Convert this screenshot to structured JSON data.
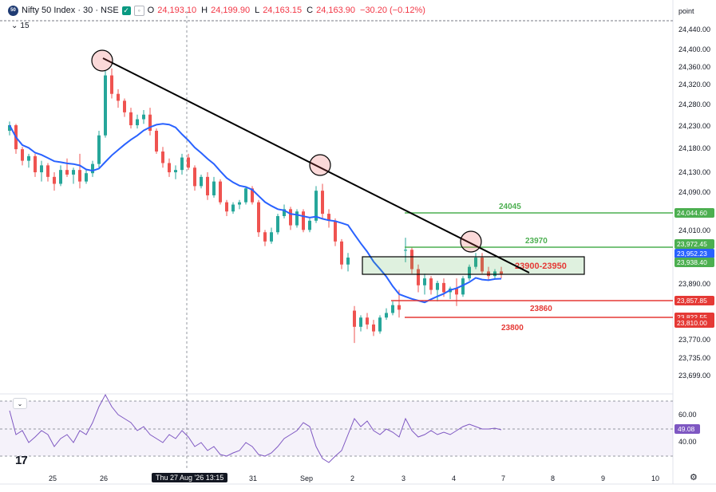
{
  "header": {
    "logo_text": "50",
    "symbol": "Nifty 50 Index · 30 · NSE",
    "o_label": "O",
    "o": "24,193.10",
    "h_label": "H",
    "h": "24,199.90",
    "l_label": "L",
    "l": "24,163.15",
    "c_label": "C",
    "c": "24,163.90",
    "change": "−30.20 (−0.12%)",
    "interval_count": "15"
  },
  "price_scale_label": "point",
  "colors": {
    "up": "#26a69a",
    "down": "#ef5350",
    "ma": "#2962ff",
    "resistance": "#4caf50",
    "support": "#e53935",
    "trend": "#000000",
    "rsi": "#7e57c2"
  },
  "chart_data": {
    "type": "candlestick",
    "y_ticks": [
      "24,440.00",
      "24,400.00",
      "24,360.00",
      "24,320.00",
      "24,280.00",
      "24,230.00",
      "24,180.00",
      "24,130.00",
      "24,090.00",
      "24,010.00",
      "23,890.00",
      "23,770.00",
      "23,735.00",
      "23,699.00"
    ],
    "x_labels": [
      "25",
      "26",
      "31",
      "Sep",
      "2",
      "3",
      "4",
      "7",
      "8",
      "9",
      "10"
    ],
    "cursor_time": "Thu 27 Aug '26  13:15",
    "price_tags": [
      {
        "value": "24,044.60",
        "color": "#4caf50"
      },
      {
        "value": "23,972.45",
        "color": "#4caf50"
      },
      {
        "value": "23,952.23",
        "color": "#2962ff"
      },
      {
        "value": "23,938.40",
        "color": "#4caf50"
      },
      {
        "value": "23,857.85",
        "color": "#e53935"
      },
      {
        "value": "23,822.55",
        "color": "#e53935"
      },
      {
        "value": "23,810.00",
        "color": "#e53935"
      }
    ],
    "levels": [
      {
        "label": "24045",
        "value": 24045,
        "kind": "resistance"
      },
      {
        "label": "23970",
        "value": 23970,
        "kind": "resistance"
      },
      {
        "label": "23860",
        "value": 23860,
        "kind": "support"
      },
      {
        "label": "23800",
        "value": 23800,
        "kind": "support"
      }
    ],
    "zone_label": "23900-23950",
    "candles": [
      [
        24250,
        24270,
        24240,
        24262
      ],
      [
        24262,
        24265,
        24200,
        24210
      ],
      [
        24210,
        24215,
        24175,
        24185
      ],
      [
        24185,
        24200,
        24170,
        24195
      ],
      [
        24195,
        24200,
        24150,
        24160
      ],
      [
        24160,
        24185,
        24140,
        24175
      ],
      [
        24175,
        24180,
        24140,
        24150
      ],
      [
        24150,
        24160,
        24120,
        24135
      ],
      [
        24135,
        24175,
        24130,
        24165
      ],
      [
        24165,
        24190,
        24150,
        24155
      ],
      [
        24155,
        24170,
        24135,
        24165
      ],
      [
        24165,
        24200,
        24125,
        24140
      ],
      [
        24140,
        24165,
        24135,
        24158
      ],
      [
        24158,
        24185,
        24150,
        24178
      ],
      [
        24178,
        24250,
        24170,
        24240
      ],
      [
        24240,
        24380,
        24235,
        24370
      ],
      [
        24370,
        24385,
        24320,
        24330
      ],
      [
        24330,
        24340,
        24300,
        24315
      ],
      [
        24315,
        24320,
        24280,
        24290
      ],
      [
        24290,
        24300,
        24255,
        24262
      ],
      [
        24262,
        24285,
        24255,
        24275
      ],
      [
        24275,
        24295,
        24265,
        24285
      ],
      [
        24285,
        24300,
        24240,
        24250
      ],
      [
        24250,
        24255,
        24200,
        24205
      ],
      [
        24205,
        24215,
        24170,
        24180
      ],
      [
        24180,
        24190,
        24150,
        24160
      ],
      [
        24160,
        24175,
        24145,
        24165
      ],
      [
        24165,
        24200,
        24155,
        24192
      ],
      [
        24192,
        24200,
        24165,
        24170
      ],
      [
        24170,
        24175,
        24120,
        24130
      ],
      [
        24130,
        24155,
        24125,
        24150
      ],
      [
        24150,
        24160,
        24100,
        24110
      ],
      [
        24110,
        24150,
        24105,
        24140
      ],
      [
        24140,
        24145,
        24090,
        24095
      ],
      [
        24095,
        24100,
        24065,
        24075
      ],
      [
        24075,
        24095,
        24070,
        24090
      ],
      [
        24090,
        24100,
        24080,
        24095
      ],
      [
        24095,
        24130,
        24090,
        24125
      ],
      [
        24125,
        24130,
        24090,
        24095
      ],
      [
        24095,
        24100,
        24020,
        24030
      ],
      [
        24030,
        24035,
        24000,
        24010
      ],
      [
        24010,
        24040,
        24005,
        24030
      ],
      [
        24030,
        24070,
        24025,
        24065
      ],
      [
        24065,
        24090,
        24060,
        24080
      ],
      [
        24080,
        24085,
        24035,
        24045
      ],
      [
        24045,
        24080,
        24040,
        24075
      ],
      [
        24075,
        24080,
        24030,
        24035
      ],
      [
        24035,
        24060,
        24030,
        24055
      ],
      [
        24055,
        24130,
        24050,
        24120
      ],
      [
        24120,
        24135,
        24060,
        24070
      ],
      [
        24070,
        24080,
        24040,
        24055
      ],
      [
        24055,
        24060,
        24000,
        24010
      ],
      [
        24010,
        24015,
        23950,
        23960
      ],
      [
        23960,
        23985,
        23945,
        23975
      ],
      [
        23860,
        23870,
        23790,
        23825
      ],
      [
        23825,
        23850,
        23815,
        23845
      ],
      [
        23845,
        23855,
        23820,
        23830
      ],
      [
        23830,
        23840,
        23805,
        23815
      ],
      [
        23815,
        23850,
        23810,
        23845
      ],
      [
        23845,
        23865,
        23840,
        23855
      ],
      [
        23855,
        23880,
        23850,
        23872
      ],
      [
        23872,
        23905,
        23845,
        23862
      ],
      [
        23990,
        24018,
        23965,
        23992
      ],
      [
        23992,
        23998,
        23940,
        23950
      ],
      [
        23950,
        23960,
        23900,
        23915
      ],
      [
        23915,
        23940,
        23895,
        23930
      ],
      [
        23930,
        23935,
        23895,
        23905
      ],
      [
        23905,
        23925,
        23880,
        23920
      ],
      [
        23920,
        23930,
        23890,
        23900
      ],
      [
        23900,
        23912,
        23885,
        23908
      ],
      [
        23908,
        23930,
        23870,
        23895
      ],
      [
        23895,
        23935,
        23890,
        23930
      ],
      [
        23930,
        23960,
        23925,
        23955
      ],
      [
        23955,
        23985,
        23950,
        23975
      ],
      [
        23975,
        23985,
        23940,
        23945
      ],
      [
        23945,
        23955,
        23925,
        23935
      ],
      [
        23935,
        23950,
        23928,
        23945
      ],
      [
        23945,
        23955,
        23930,
        23938
      ]
    ],
    "rsi_ticks": [
      "60.00",
      "40.00"
    ],
    "rsi_value": "49.08"
  }
}
